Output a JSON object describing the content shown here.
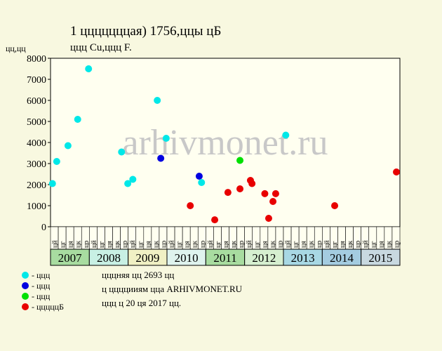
{
  "chart_data": {
    "type": "scatter",
    "title": "1 цццццццая) 1756,ццы цБ",
    "subtitle": "ццц Cu,ццц F.",
    "ylabel": "цц,цц",
    "watermark": "arhivmonet.ru",
    "ylim": [
      0,
      8000
    ],
    "yticks": [
      0,
      1000,
      2000,
      3000,
      4000,
      5000,
      6000,
      7000,
      8000
    ],
    "xlim": [
      2007,
      2016
    ],
    "years": [
      "2007",
      "2008",
      "2009",
      "2010",
      "2011",
      "2012",
      "2013",
      "2014",
      "2015"
    ],
    "year_colors": [
      "#a8dca0",
      "#c8f0e4",
      "#f0f0c4",
      "#dff3ee",
      "#a8dca0",
      "#d6efd0",
      "#a8d8e4",
      "#a4cce0",
      "#c8d8e0"
    ],
    "x_sublabels": [
      "цй",
      "цг",
      "ця",
      "цк",
      "цр",
      "цй",
      "цг",
      "ця",
      "цк",
      "цр",
      "цй",
      "цг",
      "ця",
      "цк",
      "цр",
      "цй",
      "цг",
      "ця",
      "цк",
      "цр",
      "цй",
      "цг",
      "ця",
      "цк",
      "цр",
      "цй",
      "цг",
      "ця",
      "цк",
      "цр",
      "цй",
      "цг",
      "ця",
      "цк",
      "цр",
      "цй",
      "цг",
      "ця",
      "цк",
      "цр",
      "цй",
      "цг",
      "ця",
      "цк",
      "цр"
    ],
    "series": [
      {
        "name": "- ццц",
        "color": "#00e000",
        "x": [
          2011.88
        ],
        "values": [
          3150
        ]
      },
      {
        "name": "- ццц",
        "color": "#0000e0",
        "x": [
          2009.84,
          2010.83
        ],
        "values": [
          3250,
          2400
        ]
      },
      {
        "name": "- ццц",
        "color": "#00e8e8",
        "x": [
          2007.05,
          2007.16,
          2007.45,
          2007.7,
          2007.98,
          2008.83,
          2008.99,
          2009.12,
          2009.75,
          2009.98,
          2010.89,
          2013.06
        ],
        "values": [
          2050,
          3100,
          3850,
          5100,
          7500,
          3550,
          2050,
          2250,
          6000,
          4200,
          2100,
          4350
        ]
      },
      {
        "name": "- цццццБ",
        "color": "#e80000",
        "x": [
          2010.6,
          2011.23,
          2011.57,
          2011.88,
          2012.15,
          2012.19,
          2012.52,
          2012.62,
          2012.73,
          2012.8,
          2014.32,
          2015.91
        ],
        "values": [
          1000,
          330,
          1630,
          1800,
          2200,
          2050,
          1570,
          400,
          1200,
          1570,
          1000,
          2600
        ]
      }
    ],
    "notes": [
      "цццняя цц 2693 цц",
      "ц ццццииям цца ARHIVMONET.RU",
      "ццц ц 20 ця 2017 цц."
    ]
  }
}
